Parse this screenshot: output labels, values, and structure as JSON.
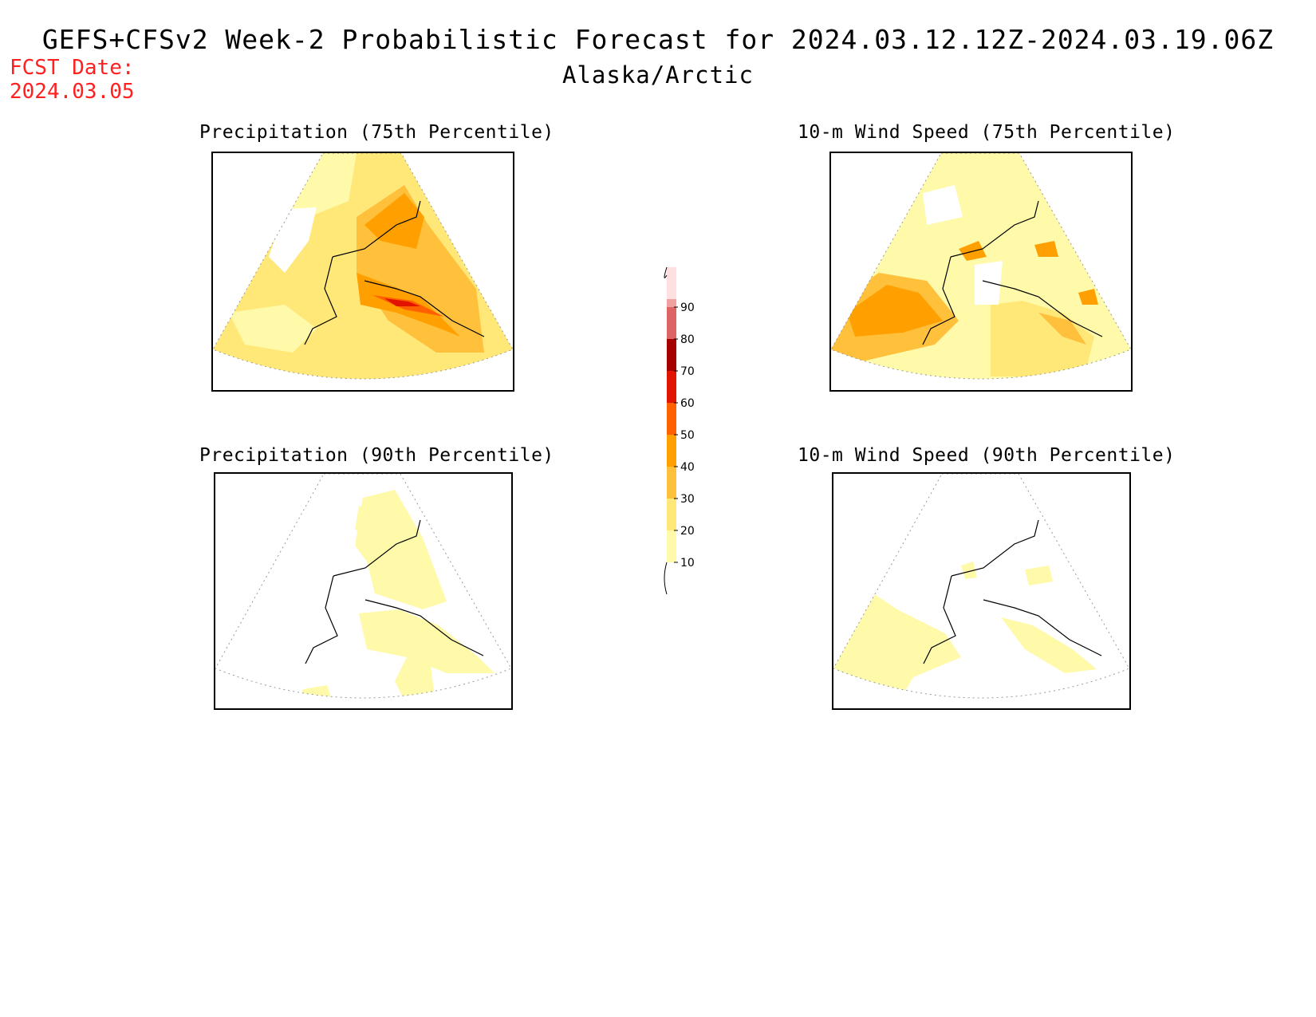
{
  "header": {
    "title": "GEFS+CFSv2 Week-2 Probabilistic Forecast for 2024.03.12.12Z-2024.03.19.06Z",
    "subtitle": "Alaska/Arctic",
    "fcst_label": "FCST Date:",
    "fcst_date": "2024.03.05"
  },
  "panels": [
    {
      "id": "precip75",
      "title": "Precipitation (75th Percentile)"
    },
    {
      "id": "wind75",
      "title": "10-m Wind Speed (75th Percentile)"
    },
    {
      "id": "precip90",
      "title": "Precipitation (90th Percentile)"
    },
    {
      "id": "wind90",
      "title": "10-m Wind Speed (90th Percentile)"
    }
  ],
  "colorbar": {
    "levels": [
      "10",
      "20",
      "30",
      "40",
      "50",
      "60",
      "70",
      "80",
      "90"
    ],
    "colors": [
      "#fffaaa",
      "#ffe878",
      "#ffc03c",
      "#ffa000",
      "#ff6000",
      "#e11400",
      "#a50000",
      "#dc6464",
      "#f0a0a0",
      "#ffe0e0"
    ]
  }
}
